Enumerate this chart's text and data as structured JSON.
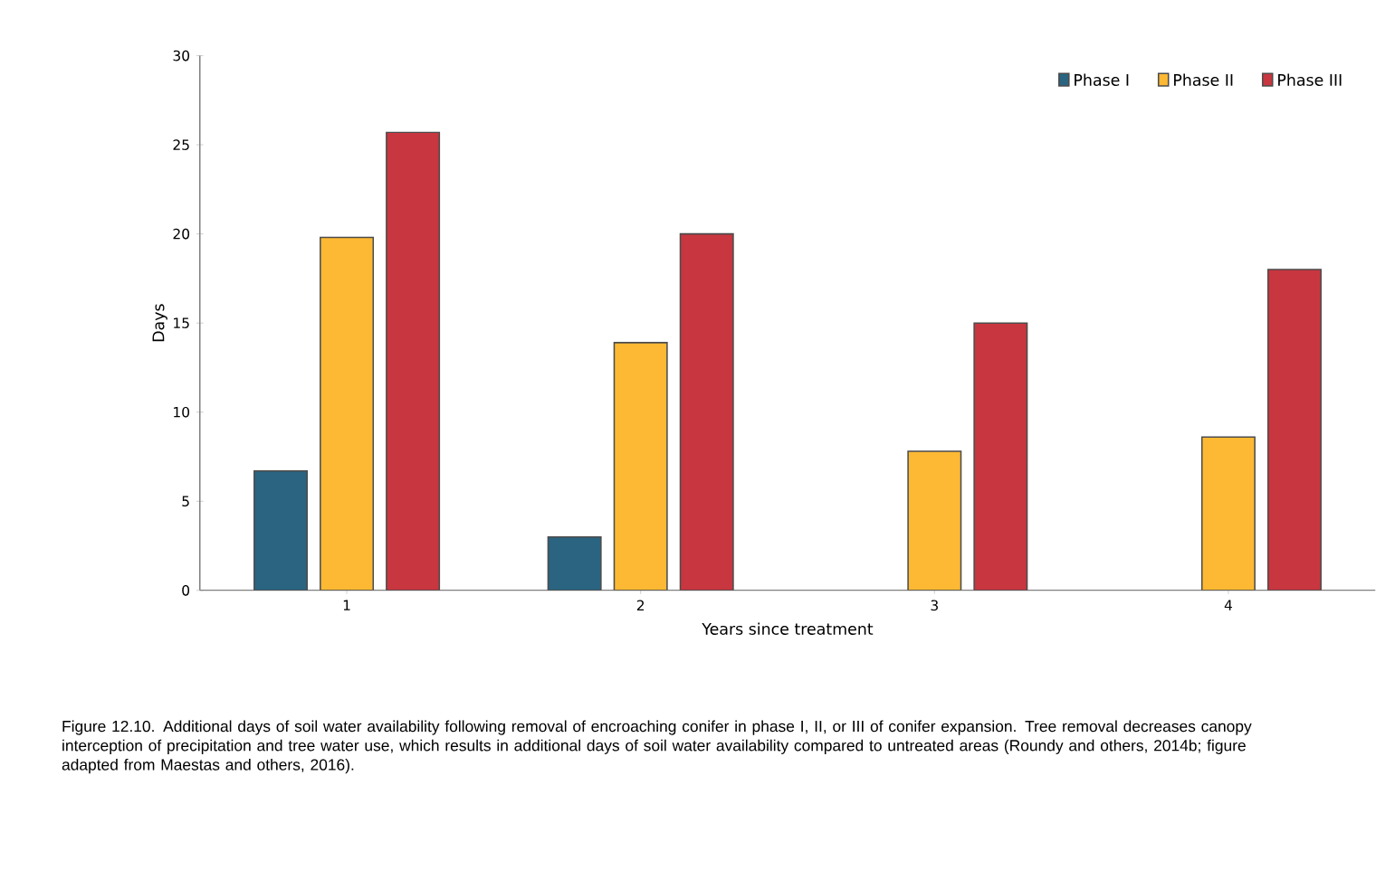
{
  "chart_data": {
    "type": "bar",
    "xlabel": "Years since treatment",
    "ylabel": "Days",
    "categories": [
      "1",
      "2",
      "3",
      "4"
    ],
    "series": [
      {
        "name": "Phase I",
        "color": "#2a6480",
        "values": [
          6.7,
          3.0,
          null,
          null
        ]
      },
      {
        "name": "Phase II",
        "color": "#fdb933",
        "values": [
          19.8,
          13.9,
          7.8,
          8.6
        ]
      },
      {
        "name": "Phase III",
        "color": "#c8363f",
        "values": [
          25.7,
          20.0,
          15.0,
          18.0
        ]
      }
    ],
    "ylim": [
      0,
      30
    ],
    "yticks": [
      0,
      5,
      10,
      15,
      20,
      25,
      30
    ],
    "grid": false,
    "legend": "top right",
    "annotations": [
      "Figure 12.10. Additional days of soil water availability following removal of encroaching conifer in phase I, II, or III of conifer expansion. Tree removal decreases canopy interception of precipitation and tree water use, which results in additional days of soil water availability compared to untreated areas (Roundy and others, 2014b; figure adapted from Maestas and others, 2016)."
    ]
  }
}
